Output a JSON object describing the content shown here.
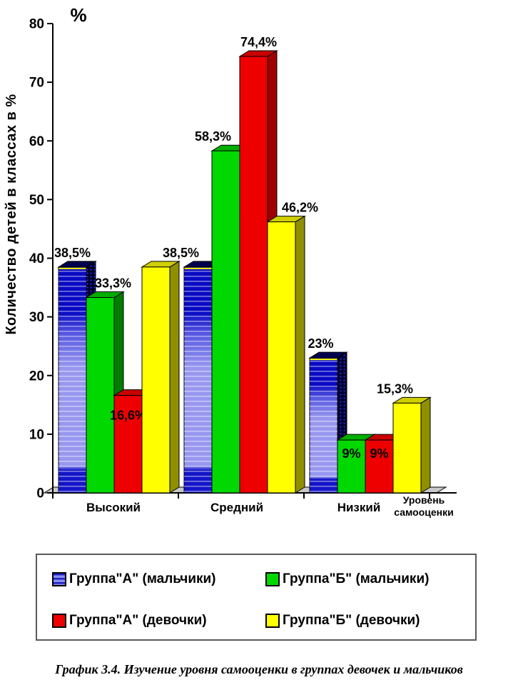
{
  "chart_data": {
    "type": "bar",
    "style": "3d-grouped-columns",
    "percent_label": "%",
    "ylabel": "Количество детей в классах в %",
    "xlabel_lines": [
      "Уровень",
      "самооценки"
    ],
    "categories": [
      "Высокий",
      "Средний",
      "Низкий"
    ],
    "yticks": [
      0,
      10,
      20,
      30,
      40,
      50,
      60,
      70,
      80
    ],
    "ylim": [
      0,
      80
    ],
    "grid": false,
    "floor_color": "#C8C8C8",
    "axis_color": "#000000",
    "series": [
      {
        "id": "group-a-boys",
        "name": "Группа\"А\" (мальчики)",
        "values": [
          38.5,
          38.5,
          23
        ],
        "labels": [
          {
            "t": "38,5%",
            "dx": 0,
            "pos": "above"
          },
          null,
          {
            "t": "23%",
            "dx": -4,
            "pos": "above"
          }
        ],
        "colors": {
          "stripe_dark": "#0A0AC4",
          "mid": "#5A5AE2",
          "stripe_light": "#9898F0",
          "bottom": "#1515C8",
          "top": "#000070",
          "side": "#000030",
          "side_dot": "#2D2DD8",
          "top_line": "#FFFF00",
          "legend_dark": "#2020C8",
          "legend_light": "#8890EE"
        }
      },
      {
        "id": "group-b-boys",
        "name": "Группа\"Б\" (мальчики)",
        "values": [
          33.3,
          58.3,
          9
        ],
        "labels": [
          {
            "t": "33,3%",
            "dx": 18,
            "pos": "above"
          },
          {
            "t": "58,3%",
            "dx": -18,
            "pos": "above"
          },
          {
            "t": "9%",
            "dx": 0,
            "pos": "inside",
            "dy": 10
          }
        ],
        "colors": {
          "front": "#00D800",
          "top": "#00AE00",
          "side": "#007C00"
        }
      },
      {
        "id": "group-a-girls",
        "name": "Группа\"А\" (девочки)",
        "values": [
          16.6,
          74.4,
          9
        ],
        "labels": [
          {
            "t": "16,6%",
            "dx": 0,
            "pos": "inside",
            "dy": 19
          },
          {
            "t": "74,4%",
            "dx": 7,
            "pos": "above"
          },
          {
            "t": "9%",
            "dx": 0,
            "pos": "inside",
            "dy": 10
          }
        ],
        "colors": {
          "front": "#EE0000",
          "top": "#C80000",
          "side": "#A00000"
        }
      },
      {
        "id": "group-b-girls",
        "name": "Группа\"Б\" (девочки)",
        "values": [
          38.5,
          46.2,
          15.3
        ],
        "labels": [
          {
            "t": "38,5%",
            "dx": 35,
            "pos": "above"
          },
          {
            "t": "46,2%",
            "dx": 26,
            "pos": "above"
          },
          {
            "t": "15,3%",
            "dx": -17,
            "pos": "above"
          }
        ],
        "colors": {
          "front": "#FFFF00",
          "top": "#CFCF00",
          "side": "#8F8F00"
        }
      }
    ],
    "legend_position": "bottom-box"
  },
  "legend": {
    "items": [
      {
        "label": "Группа\"А\" (мальчики)"
      },
      {
        "label": "Группа\"Б\" (мальчики)"
      },
      {
        "label": "Группа\"А\" (девочки)"
      },
      {
        "label": "Группа\"Б\" (девочки)"
      }
    ]
  },
  "caption": {
    "text": "График 3.4. Изучение уровня самооценки в группах девочек и мальчиков"
  }
}
